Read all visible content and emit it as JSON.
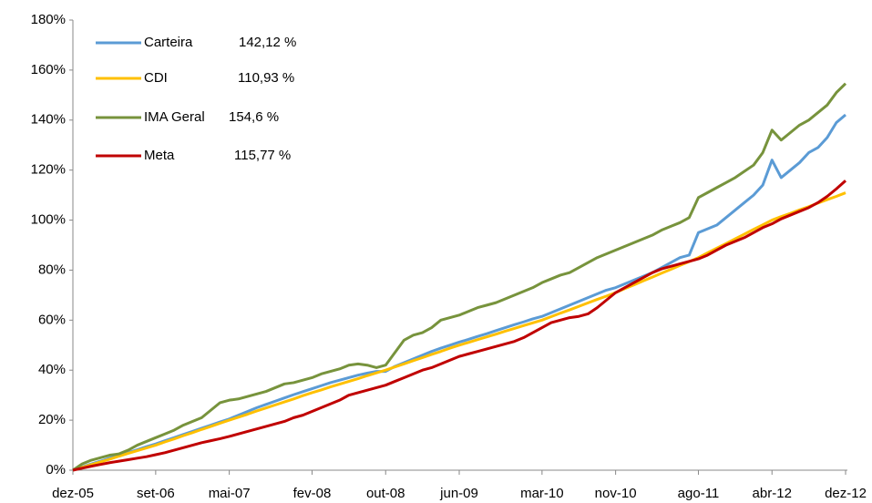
{
  "chart_data": {
    "type": "line",
    "categories": [
      "dez-05",
      null,
      null,
      null,
      null,
      null,
      null,
      null,
      null,
      "set-06",
      null,
      null,
      null,
      null,
      null,
      null,
      null,
      "mai-07",
      null,
      null,
      null,
      null,
      null,
      null,
      null,
      null,
      "fev-08",
      null,
      null,
      null,
      null,
      null,
      null,
      null,
      "out-08",
      null,
      null,
      null,
      null,
      null,
      null,
      null,
      "jun-09",
      null,
      null,
      null,
      null,
      null,
      null,
      null,
      null,
      "mar-10",
      null,
      null,
      null,
      null,
      null,
      null,
      null,
      "nov-10",
      null,
      null,
      null,
      null,
      null,
      null,
      null,
      null,
      "ago-11",
      null,
      null,
      null,
      null,
      null,
      null,
      null,
      "abr-12",
      null,
      null,
      null,
      null,
      null,
      null,
      null,
      "dez-12"
    ],
    "ylim": [
      0,
      180
    ],
    "yticks": [
      {
        "value": 0,
        "label": "0%"
      },
      {
        "value": 20,
        "label": "20%"
      },
      {
        "value": 40,
        "label": "40%"
      },
      {
        "value": 60,
        "label": "60%"
      },
      {
        "value": 80,
        "label": "80%"
      },
      {
        "value": 100,
        "label": "100%"
      },
      {
        "value": 120,
        "label": "120%"
      },
      {
        "value": 140,
        "label": "140%"
      },
      {
        "value": 160,
        "label": "160%"
      },
      {
        "value": 180,
        "label": "180%"
      }
    ],
    "grid": false,
    "legend": "upper-left",
    "series": [
      {
        "name": "Carteira",
        "end_label": "142,12 %",
        "color": "#5b9bd5",
        "values": [
          0,
          1.3,
          2.5,
          3.6,
          4.8,
          5.9,
          7,
          8.2,
          9.4,
          10.5,
          11.8,
          13,
          14.3,
          15.5,
          16.8,
          18,
          19.3,
          20.5,
          22,
          23.5,
          25,
          26.3,
          27.6,
          28.9,
          30.2,
          31.4,
          32.6,
          33.8,
          35,
          36,
          37,
          38,
          38.8,
          39.5,
          39.5,
          41.5,
          43,
          44.5,
          46,
          47.5,
          48.8,
          50,
          51.2,
          52.3,
          53.5,
          54.6,
          55.8,
          57,
          58.2,
          59.3,
          60.5,
          61.5,
          63,
          64.5,
          66,
          67.5,
          69,
          70.5,
          72,
          73,
          74.5,
          76,
          77.5,
          79,
          81,
          83,
          85,
          86,
          95,
          96.5,
          98,
          101,
          104,
          107,
          110,
          114,
          124,
          117,
          120,
          123,
          127,
          129,
          133,
          139,
          142.12
        ]
      },
      {
        "name": "CDI",
        "end_label": "110,93 %",
        "color": "#ffc000",
        "values": [
          0,
          1.1,
          2.2,
          3.3,
          4.4,
          5.6,
          6.7,
          7.8,
          8.9,
          10,
          11.3,
          12.5,
          13.8,
          15,
          16.3,
          17.5,
          18.8,
          20,
          21.2,
          22.4,
          23.7,
          24.9,
          26.1,
          27.3,
          28.5,
          29.8,
          31,
          32.1,
          33.3,
          34.4,
          35.5,
          36.6,
          37.8,
          38.9,
          40,
          41.3,
          42.5,
          43.8,
          45,
          46.3,
          47.5,
          48.8,
          50,
          51.1,
          52.2,
          53.3,
          54.4,
          55.6,
          56.7,
          57.8,
          58.9,
          60,
          61.4,
          62.8,
          64.1,
          65.5,
          66.9,
          68.3,
          69.6,
          71,
          72.6,
          74.1,
          75.7,
          77.2,
          78.8,
          80.3,
          81.9,
          83.4,
          85,
          86.9,
          88.8,
          90.6,
          92.5,
          94.4,
          96.3,
          98.1,
          100,
          101.4,
          102.7,
          104.1,
          105.4,
          106.8,
          108.2,
          109.5,
          110.93
        ]
      },
      {
        "name": "IMA Geral",
        "end_label": "154,6 %",
        "color": "#77933c",
        "values": [
          0,
          2.5,
          4,
          5,
          6,
          6.5,
          8,
          10,
          11.5,
          13,
          14.5,
          16,
          18,
          19.5,
          21,
          24,
          27,
          28,
          28.5,
          29.5,
          30.5,
          31.5,
          33,
          34.5,
          35,
          36,
          37,
          38.5,
          39.5,
          40.5,
          42,
          42.5,
          42,
          41,
          42,
          47,
          52,
          54,
          55,
          57,
          60,
          61,
          62,
          63.5,
          65,
          66,
          67,
          68.5,
          70,
          71.5,
          73,
          75,
          76.5,
          78,
          79,
          81,
          83,
          85,
          86.5,
          88,
          89.5,
          91,
          92.5,
          94,
          96,
          97.5,
          99,
          101,
          109,
          111,
          113,
          115,
          117,
          119.5,
          122,
          127,
          136,
          132,
          135,
          138,
          140,
          143,
          146,
          151,
          154.6
        ]
      },
      {
        "name": "Meta",
        "end_label": "115,77 %",
        "color": "#c00000",
        "values": [
          0,
          0.8,
          1.6,
          2.3,
          3,
          3.6,
          4.2,
          4.8,
          5.4,
          6.2,
          7,
          8,
          9,
          10,
          11,
          11.8,
          12.6,
          13.5,
          14.5,
          15.5,
          16.5,
          17.5,
          18.5,
          19.5,
          21,
          22,
          23.5,
          25,
          26.5,
          28,
          30,
          31,
          32,
          33,
          34,
          35.5,
          37,
          38.5,
          40,
          41,
          42.5,
          44,
          45.5,
          46.5,
          47.5,
          48.5,
          49.5,
          50.5,
          51.5,
          53,
          55,
          57,
          59,
          60,
          61,
          61.5,
          62.5,
          65,
          68,
          71,
          73,
          75,
          77,
          79,
          80.5,
          81.5,
          82.5,
          83.5,
          84.5,
          86,
          88,
          90,
          91.5,
          93,
          95,
          97,
          98.5,
          100.5,
          102,
          103.5,
          105,
          107,
          109.5,
          112.5,
          115.77
        ]
      }
    ]
  }
}
